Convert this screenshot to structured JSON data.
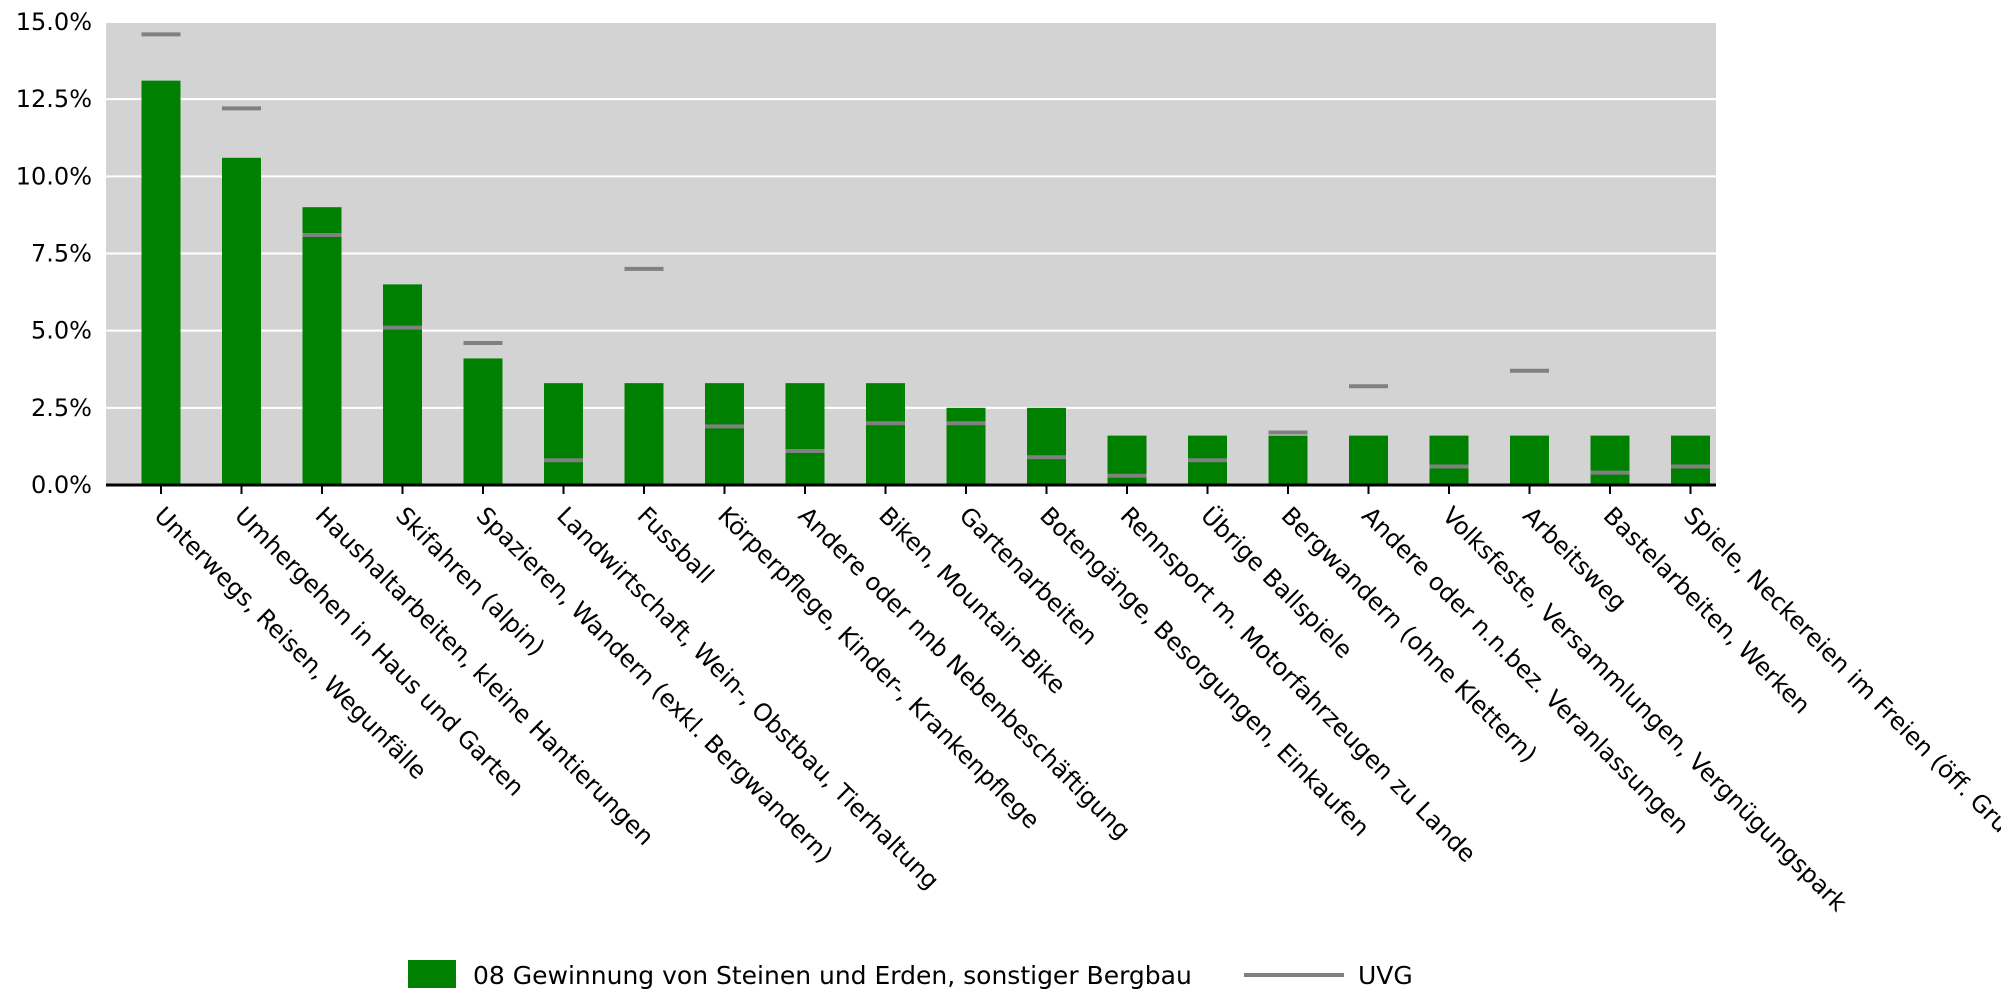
{
  "chart_data": {
    "type": "bar",
    "categories": [
      "Unterwegs, Reisen, Wegunfälle",
      "Umhergehen in Haus und Garten",
      "Haushaltarbeiten, kleine Hantierungen",
      "Skifahren (alpin)",
      "Spazieren, Wandern (exkl. Bergwandern)",
      "Landwirtschaft, Wein-, Obstbau, Tierhaltung",
      "Fussball",
      "Körperpflege, Kinder-, Krankenpflege",
      "Andere oder nnb Nebenbeschäftigung",
      "Biken, Mountain-Bike",
      "Gartenarbeiten",
      "Botengänge, Besorgungen, Einkaufen",
      "Rennsport m. Motorfahrzeugen zu Lande",
      "Übrige Ballspiele",
      "Bergwandern (ohne Klettern)",
      "Andere oder n.n.bez. Veranlassungen",
      "Volksfeste, Versammlungen, Vergnügungspark",
      "Arbeitsweg",
      "Bastelarbeiten, Werken",
      "Spiele, Neckereien im Freien (öff. Grund)"
    ],
    "series": [
      {
        "name": "08 Gewinnung von Steinen und Erden, sonstiger Bergbau",
        "color": "#008000",
        "values": [
          13.1,
          10.6,
          9.0,
          6.5,
          4.1,
          3.3,
          3.3,
          3.3,
          3.3,
          3.3,
          2.5,
          2.5,
          1.6,
          1.6,
          1.6,
          1.6,
          1.6,
          1.6,
          1.6,
          1.6
        ]
      },
      {
        "name": "UVG",
        "color": "#808080",
        "values": [
          14.6,
          12.2,
          8.1,
          5.1,
          4.6,
          0.8,
          7.0,
          1.9,
          1.1,
          2.0,
          2.0,
          0.9,
          0.3,
          0.8,
          1.7,
          3.2,
          0.6,
          3.7,
          0.4,
          0.6
        ]
      }
    ],
    "y_ticks": [
      "0.0%",
      "2.5%",
      "5.0%",
      "7.5%",
      "10.0%",
      "12.5%",
      "15.0%"
    ],
    "ylim": [
      0,
      15
    ],
    "grid": true,
    "plot_background": "#d3d3d3",
    "legend_position": "bottom"
  }
}
